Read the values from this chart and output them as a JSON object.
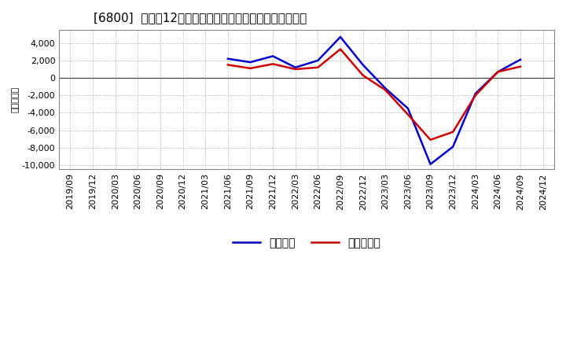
{
  "title": "[6800]  利益だ12か月移動合計の対前年同期増減額の推移",
  "ylabel": "（百万円）",
  "x_labels": [
    "2019/09",
    "2019/12",
    "2020/03",
    "2020/06",
    "2020/09",
    "2020/12",
    "2021/03",
    "2021/06",
    "2021/09",
    "2021/12",
    "2022/03",
    "2022/06",
    "2022/09",
    "2022/12",
    "2023/03",
    "2023/06",
    "2023/09",
    "2023/12",
    "2024/03",
    "2024/06",
    "2024/09",
    "2024/12"
  ],
  "keijo_rieki": [
    null,
    null,
    null,
    null,
    null,
    null,
    null,
    2200,
    1800,
    2500,
    1200,
    2000,
    4700,
    1500,
    -1200,
    -3500,
    -9900,
    -7900,
    -1800,
    700,
    2100,
    null
  ],
  "touki_jun_rieki": [
    null,
    null,
    null,
    null,
    null,
    null,
    null,
    1500,
    1100,
    1600,
    1000,
    1200,
    3300,
    300,
    -1400,
    -4200,
    -7100,
    -6200,
    -2000,
    700,
    1300,
    null
  ],
  "keijo_color": "#0000cc",
  "touki_color": "#cc0000",
  "bg_color": "#ffffff",
  "plot_bg_color": "#ffffff",
  "grid_color": "#aaaaaa",
  "ylim": [
    -10500,
    5500
  ],
  "yticks": [
    -10000,
    -8000,
    -6000,
    -4000,
    -2000,
    0,
    2000,
    4000
  ],
  "legend_keijo": "経常利益",
  "legend_touki": "当期純利益",
  "title_fontsize": 11,
  "axis_fontsize": 8,
  "legend_fontsize": 10
}
